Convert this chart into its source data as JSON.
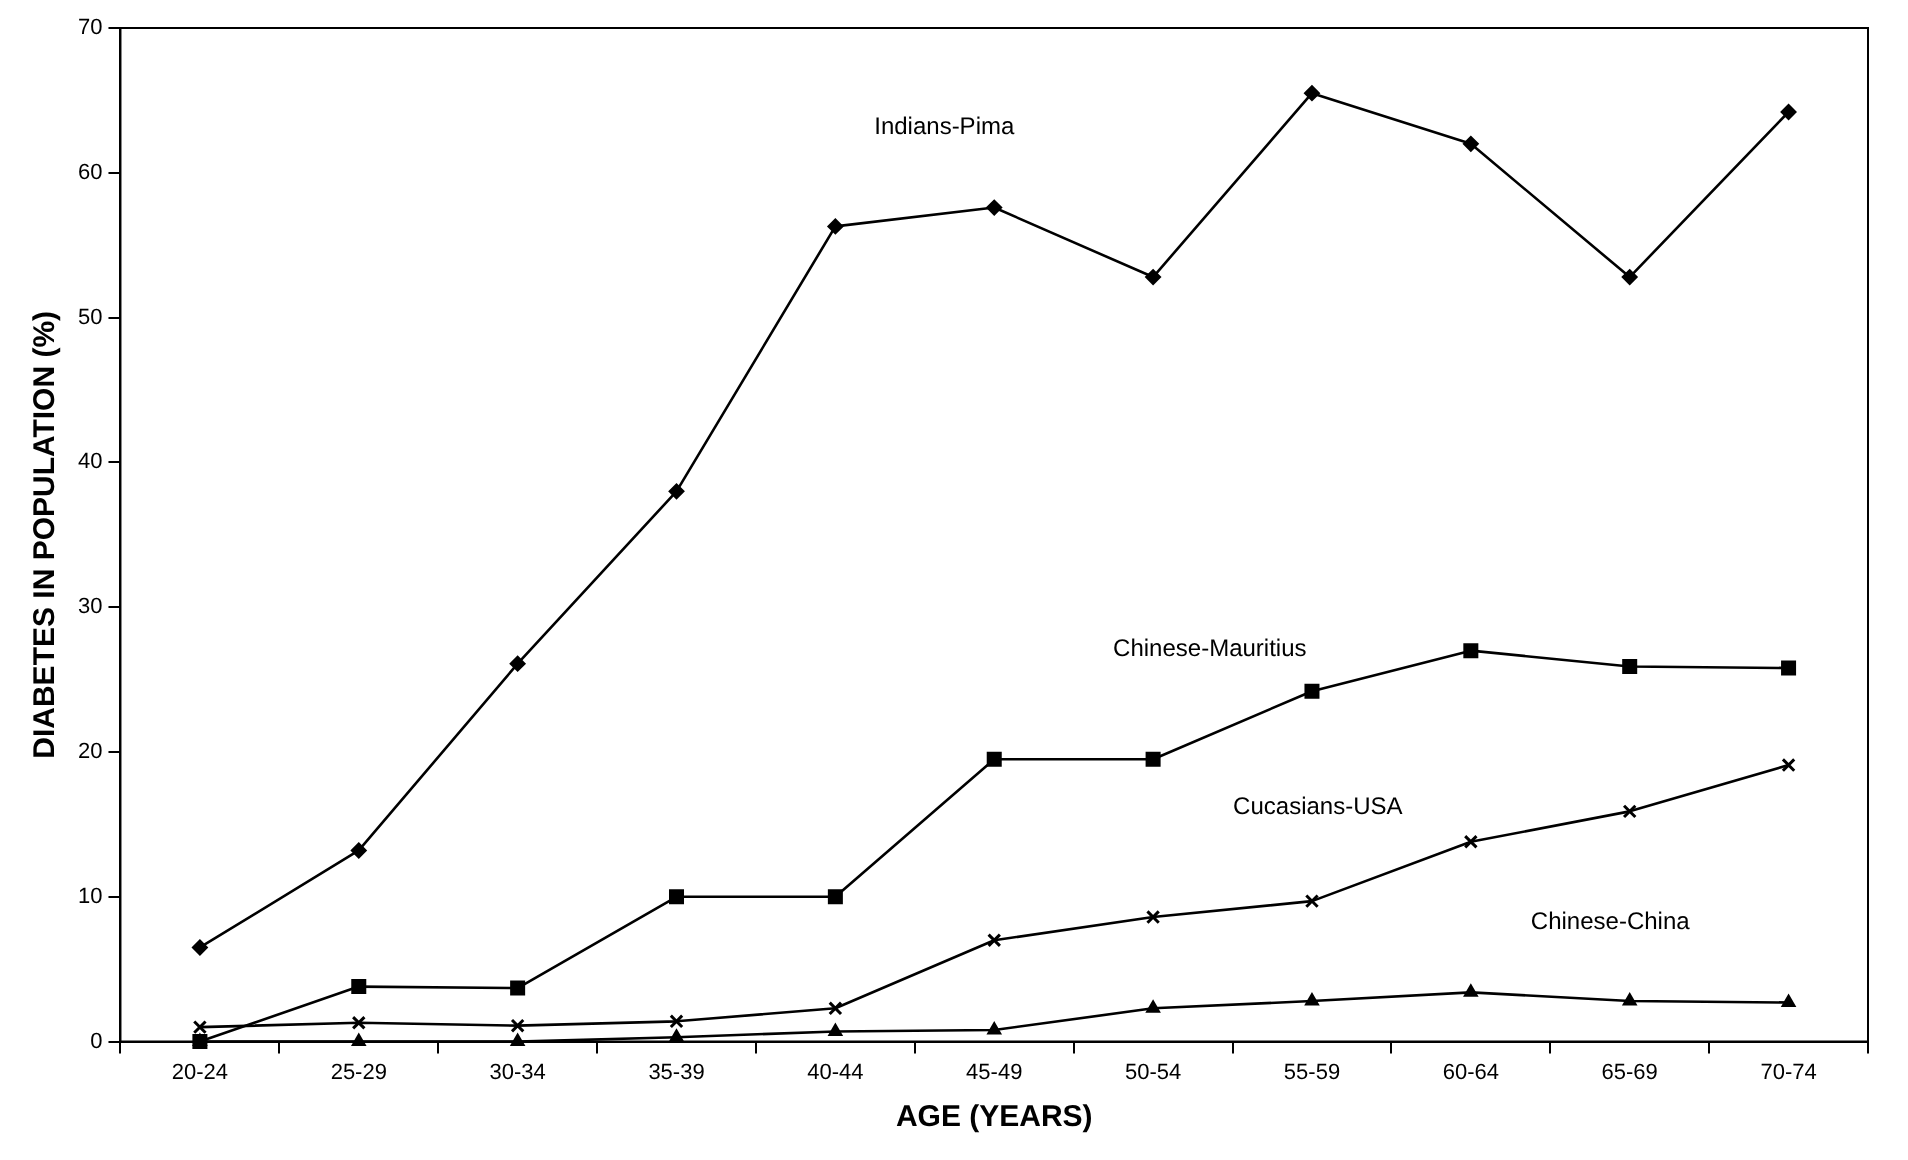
{
  "chart_data": {
    "type": "line",
    "xlabel": "AGE (YEARS)",
    "ylabel": "DIABETES IN POPULATION (%)",
    "categories": [
      "20-24",
      "25-29",
      "30-34",
      "35-39",
      "40-44",
      "45-49",
      "50-54",
      "55-59",
      "60-64",
      "65-69",
      "70-74"
    ],
    "series": [
      {
        "name": "Indians-Pima",
        "color": "#000000",
        "marker": "diamond",
        "values": [
          6.5,
          13.2,
          26.1,
          38,
          56.3,
          57.6,
          52.8,
          65.5,
          62,
          52.8,
          64.2
        ]
      },
      {
        "name": "Chinese-Mauritius",
        "color": "#000000",
        "marker": "square",
        "values": [
          0,
          3.8,
          3.7,
          10,
          10,
          19.5,
          19.5,
          24.2,
          27,
          25.9,
          25.8
        ]
      },
      {
        "name": "Cucasians-USA",
        "color": "#000000",
        "marker": "cross",
        "values": [
          1,
          1.3,
          1.1,
          1.4,
          2.3,
          7,
          8.6,
          9.7,
          13.8,
          15.9,
          19.1
        ]
      },
      {
        "name": "Chinese-China",
        "color": "#000000",
        "marker": "triangle",
        "values": [
          0,
          0,
          0,
          0.3,
          0.7,
          0.8,
          2.3,
          2.8,
          3.4,
          2.8,
          2.7
        ]
      }
    ],
    "ylim": [
      0,
      70
    ],
    "yticks": [
      0,
      10,
      20,
      30,
      40,
      50,
      60,
      70
    ],
    "grid": false,
    "legend": false,
    "line_style": "solid"
  }
}
